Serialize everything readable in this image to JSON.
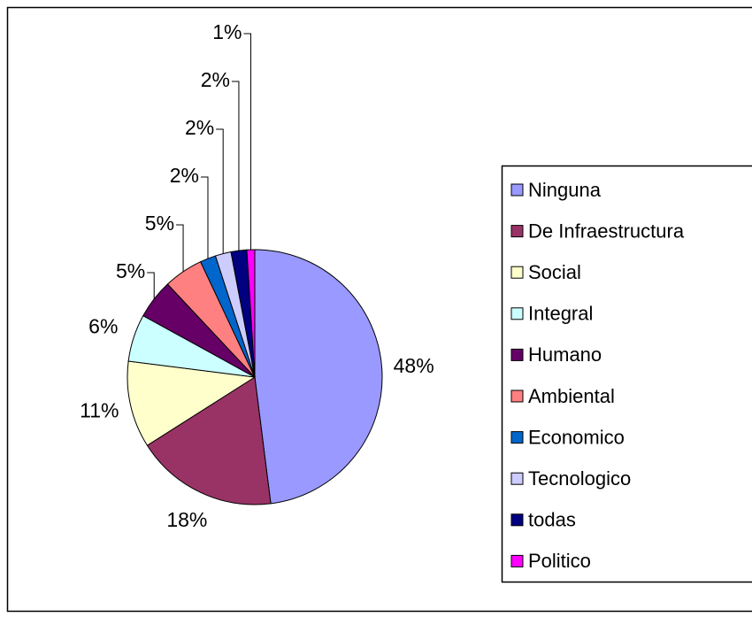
{
  "chart_data": {
    "type": "pie",
    "categories": [
      "Ninguna",
      "De Infraestructura",
      "Social",
      "Integral",
      "Humano",
      "Ambiental",
      "Economico",
      "Tecnologico",
      "todas",
      "Politico"
    ],
    "values": [
      48,
      18,
      11,
      6,
      5,
      5,
      2,
      2,
      2,
      1
    ],
    "value_labels": [
      "48%",
      "18%",
      "11%",
      "6%",
      "5%",
      "5%",
      "2%",
      "2%",
      "2%",
      "1%"
    ],
    "colors": [
      "#9999ff",
      "#993366",
      "#ffffcc",
      "#ccffff",
      "#660066",
      "#ff8080",
      "#0066cc",
      "#ccccff",
      "#000080",
      "#ff00ff"
    ],
    "legend": "right"
  }
}
